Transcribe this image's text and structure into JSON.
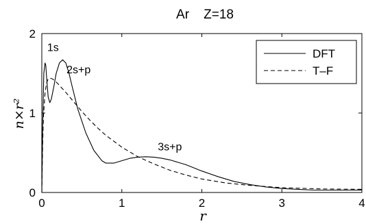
{
  "chart_data": {
    "type": "line",
    "title": "Ar    Z=18",
    "xlabel": "r",
    "ylabel": "n×r²",
    "xlim": [
      0,
      4
    ],
    "ylim": [
      0,
      2
    ],
    "xticks": [
      0,
      1,
      2,
      3,
      4
    ],
    "yticks": [
      0,
      1,
      2
    ],
    "x_tick_labels": [
      "0",
      "1",
      "2",
      "3",
      "4"
    ],
    "y_tick_labels": [
      "0",
      "1",
      "2"
    ],
    "grid": false,
    "legend_position": "top-right",
    "series": [
      {
        "name": "DFT",
        "style": "solid",
        "color": "#000000",
        "x": [
          0,
          0.01,
          0.025,
          0.04,
          0.05,
          0.06,
          0.08,
          0.1,
          0.12,
          0.15,
          0.18,
          0.22,
          0.26,
          0.3,
          0.34,
          0.38,
          0.45,
          0.55,
          0.65,
          0.75,
          0.8,
          0.9,
          1.0,
          1.1,
          1.2,
          1.3,
          1.4,
          1.5,
          1.6,
          1.7,
          1.8,
          1.9,
          2.0,
          2.2,
          2.4,
          2.6,
          2.8,
          3.0,
          3.2,
          3.4,
          3.6,
          3.8,
          4.0
        ],
        "y": [
          0,
          0.8,
          1.5,
          1.63,
          1.6,
          1.45,
          1.2,
          1.13,
          1.18,
          1.33,
          1.5,
          1.63,
          1.67,
          1.63,
          1.5,
          1.33,
          1.05,
          0.75,
          0.53,
          0.4,
          0.37,
          0.37,
          0.4,
          0.43,
          0.445,
          0.45,
          0.445,
          0.43,
          0.41,
          0.38,
          0.35,
          0.31,
          0.27,
          0.2,
          0.14,
          0.1,
          0.07,
          0.05,
          0.04,
          0.03,
          0.03,
          0.03,
          0.03
        ]
      },
      {
        "name": "T–F",
        "style": "dashed",
        "color": "#000000",
        "x": [
          0,
          0.01,
          0.02,
          0.04,
          0.06,
          0.08,
          0.1,
          0.13,
          0.16,
          0.2,
          0.3,
          0.4,
          0.5,
          0.6,
          0.7,
          0.8,
          1.0,
          1.2,
          1.4,
          1.6,
          1.8,
          2.0,
          2.3,
          2.6,
          3.0,
          3.5,
          4.0
        ],
        "y": [
          0,
          0.6,
          0.95,
          1.25,
          1.38,
          1.43,
          1.44,
          1.43,
          1.41,
          1.37,
          1.26,
          1.14,
          1.02,
          0.91,
          0.81,
          0.72,
          0.57,
          0.45,
          0.36,
          0.28,
          0.22,
          0.17,
          0.12,
          0.09,
          0.06,
          0.045,
          0.04
        ]
      }
    ],
    "annotations": [
      {
        "text": "1s",
        "x": 0.14,
        "y": 1.78
      },
      {
        "text": "2s+p",
        "x": 0.46,
        "y": 1.5
      },
      {
        "text": "3s+p",
        "x": 1.6,
        "y": 0.53
      }
    ]
  }
}
